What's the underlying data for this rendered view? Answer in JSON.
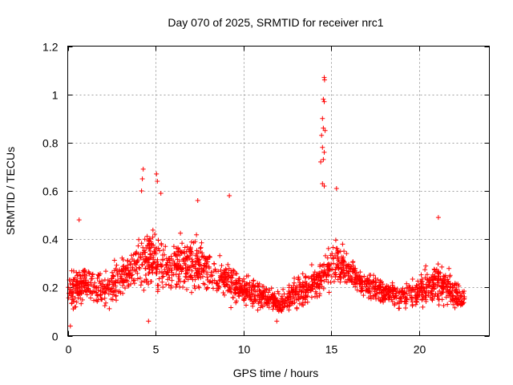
{
  "chart_data": {
    "type": "scatter",
    "title": "Day 070 of 2025, SRMTID for receiver nrc1",
    "xlabel": "GPS time / hours",
    "ylabel": "SRMTID / TECUs",
    "xlim": [
      0,
      24
    ],
    "ylim": [
      0,
      1.2
    ],
    "xticks": [
      0,
      5,
      10,
      15,
      20
    ],
    "yticks": [
      0,
      0.2,
      0.4,
      0.6,
      0.8,
      1,
      1.2
    ],
    "ytick_labels": [
      "0",
      "0.2",
      "0.4",
      "0.6",
      "0.8",
      "1",
      "1.2"
    ],
    "grid": true,
    "marker": "+",
    "series_color": "#ff0000",
    "profile_hours": [
      0,
      0.5,
      1,
      1.5,
      2,
      2.5,
      3,
      3.5,
      4,
      4.5,
      5,
      5.5,
      6,
      6.5,
      7,
      7.5,
      8,
      8.5,
      9,
      9.5,
      10,
      10.5,
      11,
      11.5,
      12,
      12.5,
      13,
      13.5,
      14,
      14.5,
      15,
      15.5,
      16,
      16.5,
      17,
      17.5,
      18,
      18.5,
      19,
      19.5,
      20,
      20.5,
      21,
      21.5,
      22,
      22.6
    ],
    "profile_median": [
      0.18,
      0.2,
      0.22,
      0.2,
      0.18,
      0.2,
      0.25,
      0.27,
      0.3,
      0.31,
      0.32,
      0.3,
      0.29,
      0.3,
      0.31,
      0.29,
      0.27,
      0.24,
      0.23,
      0.21,
      0.19,
      0.18,
      0.17,
      0.15,
      0.13,
      0.15,
      0.18,
      0.2,
      0.22,
      0.24,
      0.3,
      0.3,
      0.27,
      0.24,
      0.21,
      0.2,
      0.18,
      0.17,
      0.16,
      0.17,
      0.19,
      0.2,
      0.22,
      0.2,
      0.17,
      0.15
    ],
    "profile_spread": [
      0.08,
      0.1,
      0.09,
      0.08,
      0.07,
      0.09,
      0.1,
      0.11,
      0.13,
      0.14,
      0.14,
      0.12,
      0.12,
      0.13,
      0.13,
      0.12,
      0.1,
      0.09,
      0.09,
      0.08,
      0.07,
      0.07,
      0.06,
      0.05,
      0.05,
      0.06,
      0.08,
      0.08,
      0.09,
      0.1,
      0.1,
      0.1,
      0.08,
      0.07,
      0.07,
      0.07,
      0.06,
      0.06,
      0.06,
      0.07,
      0.08,
      0.08,
      0.1,
      0.09,
      0.07,
      0.06
    ],
    "extreme_points": [
      {
        "x": 14.6,
        "y": 1.07
      },
      {
        "x": 14.62,
        "y": 1.06
      },
      {
        "x": 14.55,
        "y": 0.98
      },
      {
        "x": 14.6,
        "y": 0.97
      },
      {
        "x": 14.5,
        "y": 0.9
      },
      {
        "x": 14.55,
        "y": 0.86
      },
      {
        "x": 14.45,
        "y": 0.83
      },
      {
        "x": 14.65,
        "y": 0.85
      },
      {
        "x": 14.5,
        "y": 0.78
      },
      {
        "x": 14.6,
        "y": 0.76
      },
      {
        "x": 14.55,
        "y": 0.73
      },
      {
        "x": 14.4,
        "y": 0.72
      },
      {
        "x": 14.5,
        "y": 0.63
      },
      {
        "x": 14.6,
        "y": 0.62
      },
      {
        "x": 15.3,
        "y": 0.61
      },
      {
        "x": 4.3,
        "y": 0.69
      },
      {
        "x": 4.25,
        "y": 0.65
      },
      {
        "x": 5.05,
        "y": 0.67
      },
      {
        "x": 5.1,
        "y": 0.64
      },
      {
        "x": 4.2,
        "y": 0.6
      },
      {
        "x": 5.3,
        "y": 0.59
      },
      {
        "x": 9.2,
        "y": 0.58
      },
      {
        "x": 7.4,
        "y": 0.56
      },
      {
        "x": 21.1,
        "y": 0.49
      },
      {
        "x": 0.65,
        "y": 0.48
      },
      {
        "x": 4.6,
        "y": 0.06
      },
      {
        "x": 0.15,
        "y": 0.04
      },
      {
        "x": 11.9,
        "y": 0.06
      }
    ]
  }
}
